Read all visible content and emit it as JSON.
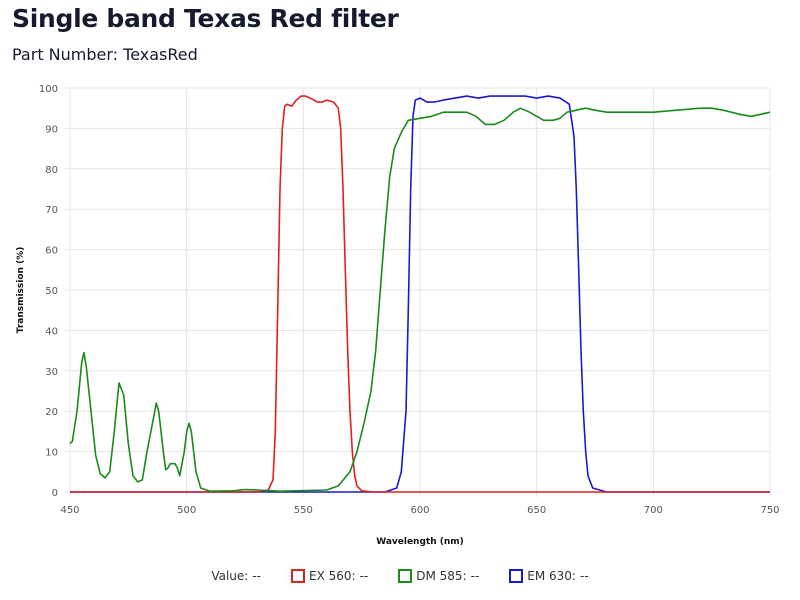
{
  "title": "Single band Texas Red filter",
  "subtitle": "Part Number: TexasRed",
  "legend": {
    "value_label": "Value:",
    "value": "--",
    "items": [
      {
        "label": "EX 560:",
        "value": "--",
        "color": "#e02020"
      },
      {
        "label": "DM 585:",
        "value": "--",
        "color": "#1a8a1a"
      },
      {
        "label": "EM 630:",
        "value": "--",
        "color": "#1a1acc"
      }
    ]
  },
  "chart_data": {
    "type": "line",
    "title": "Single band Texas Red filter",
    "xlabel": "Wavelength (nm)",
    "ylabel": "Transmission (%)",
    "xlim": [
      450,
      750
    ],
    "ylim": [
      0,
      100
    ],
    "grid": true,
    "xticks": [
      450,
      500,
      550,
      600,
      650,
      700,
      750
    ],
    "yticks": [
      0,
      10,
      20,
      30,
      40,
      50,
      60,
      70,
      80,
      90,
      100
    ],
    "series": [
      {
        "name": "EX 560",
        "color": "#e02020",
        "points": [
          [
            450,
            0
          ],
          [
            530,
            0
          ],
          [
            535,
            0.5
          ],
          [
            537,
            3
          ],
          [
            538,
            15
          ],
          [
            539,
            45
          ],
          [
            540,
            75
          ],
          [
            541,
            90
          ],
          [
            542,
            95.5
          ],
          [
            543,
            96
          ],
          [
            545,
            95.5
          ],
          [
            547,
            97
          ],
          [
            549,
            98
          ],
          [
            551,
            98
          ],
          [
            553,
            97.5
          ],
          [
            556,
            96.5
          ],
          [
            558,
            96.5
          ],
          [
            560,
            97
          ],
          [
            563,
            96.5
          ],
          [
            565,
            95
          ],
          [
            566,
            90
          ],
          [
            567,
            75
          ],
          [
            568,
            55
          ],
          [
            569,
            35
          ],
          [
            570,
            20
          ],
          [
            571,
            10
          ],
          [
            572,
            4
          ],
          [
            573,
            1.5
          ],
          [
            575,
            0.3
          ],
          [
            580,
            0
          ],
          [
            750,
            0
          ]
        ]
      },
      {
        "name": "DM 585",
        "color": "#1a8a1a",
        "points": [
          [
            450,
            12
          ],
          [
            451,
            12.5
          ],
          [
            453,
            20
          ],
          [
            455,
            32
          ],
          [
            456,
            34.5
          ],
          [
            457,
            31
          ],
          [
            459,
            20
          ],
          [
            461,
            9
          ],
          [
            463,
            4.5
          ],
          [
            465,
            3.5
          ],
          [
            467,
            5
          ],
          [
            469,
            15
          ],
          [
            471,
            27
          ],
          [
            473,
            24
          ],
          [
            475,
            12
          ],
          [
            477,
            4
          ],
          [
            479,
            2.5
          ],
          [
            481,
            3
          ],
          [
            483,
            10
          ],
          [
            485,
            16
          ],
          [
            487,
            22
          ],
          [
            488,
            20
          ],
          [
            490,
            10
          ],
          [
            491,
            5.5
          ],
          [
            492,
            6
          ],
          [
            493,
            7
          ],
          [
            495,
            7
          ],
          [
            496,
            6
          ],
          [
            497,
            4
          ],
          [
            499,
            10
          ],
          [
            500,
            15
          ],
          [
            501,
            17
          ],
          [
            502,
            15
          ],
          [
            504,
            5
          ],
          [
            506,
            1
          ],
          [
            510,
            0.2
          ],
          [
            520,
            0.3
          ],
          [
            525,
            0.6
          ],
          [
            530,
            0.5
          ],
          [
            540,
            0.2
          ],
          [
            560,
            0.5
          ],
          [
            565,
            1.5
          ],
          [
            570,
            5
          ],
          [
            573,
            10
          ],
          [
            576,
            17
          ],
          [
            579,
            25
          ],
          [
            581,
            35
          ],
          [
            583,
            50
          ],
          [
            585,
            65
          ],
          [
            587,
            78
          ],
          [
            589,
            85
          ],
          [
            592,
            89
          ],
          [
            595,
            92
          ],
          [
            600,
            92.5
          ],
          [
            605,
            93
          ],
          [
            610,
            94
          ],
          [
            615,
            94
          ],
          [
            620,
            94
          ],
          [
            624,
            93
          ],
          [
            628,
            91
          ],
          [
            632,
            91
          ],
          [
            636,
            92
          ],
          [
            640,
            94
          ],
          [
            643,
            95
          ],
          [
            647,
            94
          ],
          [
            650,
            93
          ],
          [
            653,
            92
          ],
          [
            657,
            92
          ],
          [
            660,
            92.5
          ],
          [
            663,
            94
          ],
          [
            667,
            94.5
          ],
          [
            671,
            95
          ],
          [
            675,
            94.5
          ],
          [
            680,
            94
          ],
          [
            690,
            94
          ],
          [
            700,
            94
          ],
          [
            710,
            94.5
          ],
          [
            720,
            95
          ],
          [
            725,
            95
          ],
          [
            730,
            94.5
          ],
          [
            737,
            93.5
          ],
          [
            742,
            93
          ],
          [
            746,
            93.5
          ],
          [
            750,
            94
          ]
        ]
      },
      {
        "name": "EM 630",
        "color": "#1a1acc",
        "points": [
          [
            450,
            0
          ],
          [
            585,
            0
          ],
          [
            590,
            1
          ],
          [
            592,
            5
          ],
          [
            594,
            20
          ],
          [
            595,
            45
          ],
          [
            596,
            75
          ],
          [
            597,
            93
          ],
          [
            598,
            97
          ],
          [
            600,
            97.5
          ],
          [
            603,
            96.5
          ],
          [
            606,
            96.5
          ],
          [
            610,
            97
          ],
          [
            615,
            97.5
          ],
          [
            620,
            98
          ],
          [
            625,
            97.5
          ],
          [
            630,
            98
          ],
          [
            640,
            98
          ],
          [
            645,
            98
          ],
          [
            650,
            97.5
          ],
          [
            655,
            98
          ],
          [
            660,
            97.5
          ],
          [
            664,
            96
          ],
          [
            666,
            88
          ],
          [
            667,
            75
          ],
          [
            668,
            55
          ],
          [
            669,
            35
          ],
          [
            670,
            20
          ],
          [
            671,
            10
          ],
          [
            672,
            4
          ],
          [
            674,
            1
          ],
          [
            680,
            0
          ],
          [
            750,
            0
          ]
        ]
      }
    ]
  }
}
